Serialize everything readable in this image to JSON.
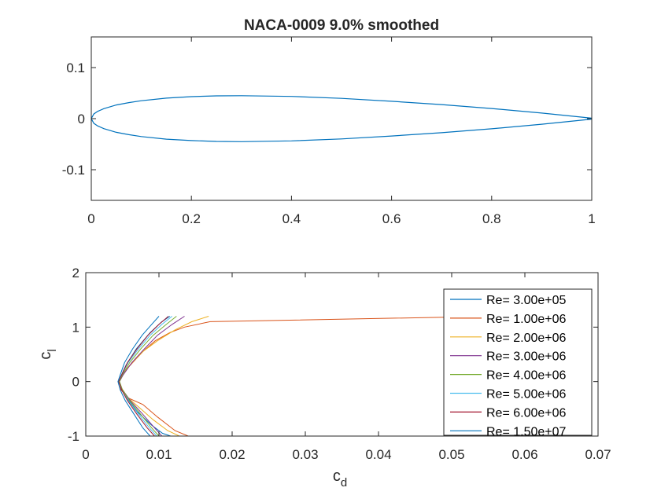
{
  "chart_data": [
    {
      "type": "line",
      "title": "NACA-0009 9.0% smoothed",
      "xlabel": "",
      "ylabel": "",
      "xlim": [
        0,
        1
      ],
      "ylim": [
        -0.16,
        0.16
      ],
      "xticks": [
        "0",
        "0.2",
        "0.4",
        "0.6",
        "0.8",
        "1"
      ],
      "yticks": [
        "-0.1",
        "0",
        "0.1"
      ],
      "grid": false,
      "series": [
        {
          "color": "#0072BD",
          "x": [
            1.0,
            0.95,
            0.9,
            0.8,
            0.7,
            0.6,
            0.5,
            0.4,
            0.3,
            0.25,
            0.2,
            0.15,
            0.1,
            0.075,
            0.05,
            0.025,
            0.0125,
            0.005,
            0.0,
            0.005,
            0.0125,
            0.025,
            0.05,
            0.075,
            0.1,
            0.15,
            0.2,
            0.25,
            0.3,
            0.4,
            0.5,
            0.6,
            0.7,
            0.8,
            0.9,
            0.95,
            1.0
          ],
          "y": [
            0.0009,
            0.006,
            0.0109,
            0.0198,
            0.0275,
            0.034,
            0.0397,
            0.0435,
            0.045,
            0.0446,
            0.043,
            0.0401,
            0.0351,
            0.0314,
            0.0267,
            0.0196,
            0.0142,
            0.009,
            0.0,
            -0.009,
            -0.0142,
            -0.0196,
            -0.0267,
            -0.0314,
            -0.0351,
            -0.0401,
            -0.043,
            -0.0446,
            -0.045,
            -0.0435,
            -0.0397,
            -0.034,
            -0.0275,
            -0.0198,
            -0.0109,
            -0.006,
            -0.0009
          ]
        }
      ]
    },
    {
      "type": "line",
      "title": "",
      "xlabel": "c",
      "xlabel_sub": "d",
      "ylabel": "c",
      "ylabel_sub": "l",
      "xlim": [
        0,
        0.07
      ],
      "ylim": [
        -1,
        2
      ],
      "xticks": [
        "0",
        "0.01",
        "0.02",
        "0.03",
        "0.04",
        "0.05",
        "0.06",
        "0.07"
      ],
      "yticks": [
        "-1",
        "0",
        "1",
        "2"
      ],
      "grid": false,
      "legend_position": "top-right",
      "series": [
        {
          "name": "Re= 3.00e+05",
          "color": "#0072BD",
          "cd": [
            0.0115,
            0.0104,
            0.0088,
            0.0069,
            0.0055,
            0.0048,
            0.0045,
            0.0048,
            0.0056,
            0.007,
            0.009,
            0.0105,
            0.0116,
            0.0118
          ],
          "cl": [
            1.2,
            1.1,
            0.9,
            0.6,
            0.3,
            0.1,
            0.0,
            -0.1,
            -0.3,
            -0.55,
            -0.8,
            -0.95,
            -1.0,
            -1.0
          ]
        },
        {
          "name": "Re= 1.00e+06",
          "color": "#D95319",
          "cd": [
            0.056,
            0.017,
            0.0135,
            0.0115,
            0.0095,
            0.0078,
            0.0062,
            0.005,
            0.0046,
            0.0048,
            0.0058,
            0.0078,
            0.0098,
            0.0122,
            0.014
          ],
          "cl": [
            1.2,
            1.1,
            1.0,
            0.9,
            0.75,
            0.55,
            0.32,
            0.15,
            0.0,
            -0.15,
            -0.3,
            -0.42,
            -0.65,
            -0.9,
            -1.0
          ]
        },
        {
          "name": "Re= 2.00e+06",
          "color": "#EDB120",
          "cd": [
            0.0168,
            0.0145,
            0.0122,
            0.0098,
            0.0078,
            0.006,
            0.0049,
            0.0046,
            0.0049,
            0.0058,
            0.0075,
            0.0092,
            0.0112,
            0.0128
          ],
          "cl": [
            1.2,
            1.1,
            0.95,
            0.75,
            0.55,
            0.3,
            0.12,
            0.0,
            -0.12,
            -0.3,
            -0.5,
            -0.7,
            -0.9,
            -1.0
          ]
        },
        {
          "name": "Re= 3.00e+06",
          "color": "#7E2F8E",
          "cd": [
            0.0135,
            0.0118,
            0.0098,
            0.008,
            0.0063,
            0.0051,
            0.0046,
            0.005,
            0.0061,
            0.0078,
            0.0094,
            0.0104
          ],
          "cl": [
            1.2,
            1.05,
            0.85,
            0.6,
            0.35,
            0.12,
            0.0,
            -0.15,
            -0.35,
            -0.6,
            -0.85,
            -1.0
          ]
        },
        {
          "name": "Re= 4.00e+06",
          "color": "#77AC30",
          "cd": [
            0.0124,
            0.011,
            0.0092,
            0.0075,
            0.006,
            0.005,
            0.0046,
            0.005,
            0.006,
            0.0075,
            0.009,
            0.01
          ],
          "cl": [
            1.2,
            1.05,
            0.85,
            0.6,
            0.35,
            0.12,
            0.0,
            -0.15,
            -0.35,
            -0.6,
            -0.85,
            -1.0
          ]
        },
        {
          "name": "Re= 5.00e+06",
          "color": "#4DBEEE",
          "cd": [
            0.0118,
            0.0104,
            0.0088,
            0.0072,
            0.0058,
            0.0049,
            0.0045,
            0.0049,
            0.0058,
            0.0072,
            0.0087,
            0.0097
          ],
          "cl": [
            1.2,
            1.05,
            0.85,
            0.6,
            0.35,
            0.12,
            0.0,
            -0.15,
            -0.35,
            -0.6,
            -0.85,
            -1.0
          ]
        },
        {
          "name": "Re= 6.00e+06",
          "color": "#A2142F",
          "cd": [
            0.0113,
            0.01,
            0.0085,
            0.007,
            0.0057,
            0.0049,
            0.0045,
            0.0049,
            0.0057,
            0.007,
            0.0084,
            0.0094
          ],
          "cl": [
            1.2,
            1.05,
            0.85,
            0.6,
            0.35,
            0.12,
            0.0,
            -0.15,
            -0.35,
            -0.6,
            -0.85,
            -1.0
          ]
        },
        {
          "name": "Re= 1.50e+07",
          "color": "#0072BD",
          "cd": [
            0.01,
            0.009,
            0.0077,
            0.0064,
            0.0053,
            0.0047,
            0.0044,
            0.0047,
            0.0054,
            0.0066,
            0.0078,
            0.0088
          ],
          "cl": [
            1.2,
            1.05,
            0.85,
            0.6,
            0.35,
            0.12,
            0.0,
            -0.15,
            -0.35,
            -0.6,
            -0.85,
            -1.0
          ]
        }
      ]
    }
  ]
}
